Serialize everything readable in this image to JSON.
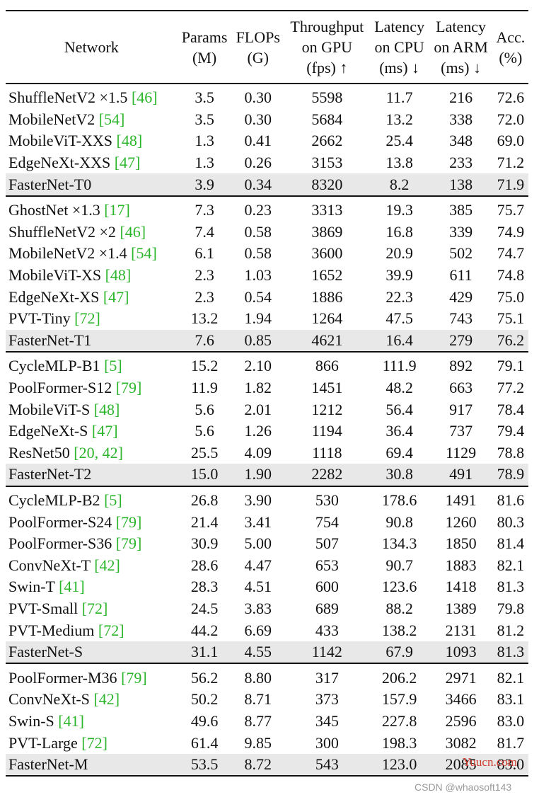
{
  "header": {
    "network": "Network",
    "params": [
      "Params",
      "(M)"
    ],
    "flops": [
      "FLOPs",
      "(G)"
    ],
    "gpu": [
      "Throughput",
      "on GPU",
      "(fps) ↑"
    ],
    "cpu": [
      "Latency",
      "on CPU",
      "(ms) ↓"
    ],
    "arm": [
      "Latency",
      "on ARM",
      "(ms) ↓"
    ],
    "acc": [
      "Acc.",
      "(%)"
    ]
  },
  "groups": [
    [
      {
        "name": "ShuffleNetV2 ×1.5",
        "cite": "[46]",
        "params": "3.5",
        "flops": "0.30",
        "gpu": "5598",
        "cpu": "11.7",
        "arm": "216",
        "acc": "72.6"
      },
      {
        "name": "MobileNetV2",
        "cite": "[54]",
        "params": "3.5",
        "flops": "0.30",
        "gpu": "5684",
        "cpu": "13.2",
        "arm": "338",
        "acc": "72.0"
      },
      {
        "name": "MobileViT-XXS",
        "cite": "[48]",
        "params": "1.3",
        "flops": "0.41",
        "gpu": "2662",
        "cpu": "25.4",
        "arm": "348",
        "acc": "69.0"
      },
      {
        "name": "EdgeNeXt-XXS",
        "cite": "[47]",
        "params": "1.3",
        "flops": "0.26",
        "gpu": "3153",
        "cpu": "13.8",
        "arm": "233",
        "acc": "71.2"
      },
      {
        "name": "FasterNet-T0",
        "cite": "",
        "params": "3.9",
        "flops": "0.34",
        "gpu": "8320",
        "cpu": "8.2",
        "arm": "138",
        "acc": "71.9",
        "highlight": true
      }
    ],
    [
      {
        "name": "GhostNet ×1.3",
        "cite": "[17]",
        "params": "7.3",
        "flops": "0.23",
        "gpu": "3313",
        "cpu": "19.3",
        "arm": "385",
        "acc": "75.7"
      },
      {
        "name": "ShuffleNetV2 ×2",
        "cite": "[46]",
        "params": "7.4",
        "flops": "0.58",
        "gpu": "3869",
        "cpu": "16.8",
        "arm": "339",
        "acc": "74.9"
      },
      {
        "name": "MobileNetV2 ×1.4",
        "cite": "[54]",
        "params": "6.1",
        "flops": "0.58",
        "gpu": "3600",
        "cpu": "20.9",
        "arm": "502",
        "acc": "74.7"
      },
      {
        "name": "MobileViT-XS",
        "cite": "[48]",
        "params": "2.3",
        "flops": "1.03",
        "gpu": "1652",
        "cpu": "39.9",
        "arm": "611",
        "acc": "74.8"
      },
      {
        "name": "EdgeNeXt-XS",
        "cite": "[47]",
        "params": "2.3",
        "flops": "0.54",
        "gpu": "1886",
        "cpu": "22.3",
        "arm": "429",
        "acc": "75.0"
      },
      {
        "name": "PVT-Tiny",
        "cite": "[72]",
        "params": "13.2",
        "flops": "1.94",
        "gpu": "1264",
        "cpu": "47.5",
        "arm": "743",
        "acc": "75.1"
      },
      {
        "name": "FasterNet-T1",
        "cite": "",
        "params": "7.6",
        "flops": "0.85",
        "gpu": "4621",
        "cpu": "16.4",
        "arm": "279",
        "acc": "76.2",
        "highlight": true
      }
    ],
    [
      {
        "name": "CycleMLP-B1",
        "cite": "[5]",
        "params": "15.2",
        "flops": "2.10",
        "gpu": "866",
        "cpu": "111.9",
        "arm": "892",
        "acc": "79.1"
      },
      {
        "name": "PoolFormer-S12",
        "cite": "[79]",
        "params": "11.9",
        "flops": "1.82",
        "gpu": "1451",
        "cpu": "48.2",
        "arm": "663",
        "acc": "77.2"
      },
      {
        "name": "MobileViT-S",
        "cite": "[48]",
        "params": "5.6",
        "flops": "2.01",
        "gpu": "1212",
        "cpu": "56.4",
        "arm": "917",
        "acc": "78.4"
      },
      {
        "name": "EdgeNeXt-S",
        "cite": "[47]",
        "params": "5.6",
        "flops": "1.26",
        "gpu": "1194",
        "cpu": "36.4",
        "arm": "737",
        "acc": "79.4"
      },
      {
        "name": "ResNet50",
        "cite": "[20, 42]",
        "params": "25.5",
        "flops": "4.09",
        "gpu": "1118",
        "cpu": "69.4",
        "arm": "1129",
        "acc": "78.8"
      },
      {
        "name": "FasterNet-T2",
        "cite": "",
        "params": "15.0",
        "flops": "1.90",
        "gpu": "2282",
        "cpu": "30.8",
        "arm": "491",
        "acc": "78.9",
        "highlight": true
      }
    ],
    [
      {
        "name": "CycleMLP-B2",
        "cite": "[5]",
        "params": "26.8",
        "flops": "3.90",
        "gpu": "530",
        "cpu": "178.6",
        "arm": "1491",
        "acc": "81.6"
      },
      {
        "name": "PoolFormer-S24",
        "cite": "[79]",
        "params": "21.4",
        "flops": "3.41",
        "gpu": "754",
        "cpu": "90.8",
        "arm": "1260",
        "acc": "80.3"
      },
      {
        "name": "PoolFormer-S36",
        "cite": "[79]",
        "params": "30.9",
        "flops": "5.00",
        "gpu": "507",
        "cpu": "134.3",
        "arm": "1850",
        "acc": "81.4"
      },
      {
        "name": "ConvNeXt-T",
        "cite": "[42]",
        "params": "28.6",
        "flops": "4.47",
        "gpu": "653",
        "cpu": "90.7",
        "arm": "1883",
        "acc": "82.1"
      },
      {
        "name": "Swin-T",
        "cite": "[41]",
        "params": "28.3",
        "flops": "4.51",
        "gpu": "600",
        "cpu": "123.6",
        "arm": "1418",
        "acc": "81.3"
      },
      {
        "name": "PVT-Small",
        "cite": "[72]",
        "params": "24.5",
        "flops": "3.83",
        "gpu": "689",
        "cpu": "88.2",
        "arm": "1389",
        "acc": "79.8"
      },
      {
        "name": "PVT-Medium",
        "cite": "[72]",
        "params": "44.2",
        "flops": "6.69",
        "gpu": "433",
        "cpu": "138.2",
        "arm": "2131",
        "acc": "81.2"
      },
      {
        "name": "FasterNet-S",
        "cite": "",
        "params": "31.1",
        "flops": "4.55",
        "gpu": "1142",
        "cpu": "67.9",
        "arm": "1093",
        "acc": "81.3",
        "highlight": true
      }
    ],
    [
      {
        "name": "PoolFormer-M36",
        "cite": "[79]",
        "params": "56.2",
        "flops": "8.80",
        "gpu": "317",
        "cpu": "206.2",
        "arm": "2971",
        "acc": "82.1"
      },
      {
        "name": "ConvNeXt-S",
        "cite": "[42]",
        "params": "50.2",
        "flops": "8.71",
        "gpu": "373",
        "cpu": "157.9",
        "arm": "3466",
        "acc": "83.1"
      },
      {
        "name": "Swin-S",
        "cite": "[41]",
        "params": "49.6",
        "flops": "8.77",
        "gpu": "345",
        "cpu": "227.8",
        "arm": "2596",
        "acc": "83.0"
      },
      {
        "name": "PVT-Large",
        "cite": "[72]",
        "params": "61.4",
        "flops": "9.85",
        "gpu": "300",
        "cpu": "198.3",
        "arm": "3082",
        "acc": "81.7"
      },
      {
        "name": "FasterNet-M",
        "cite": "",
        "params": "53.5",
        "flops": "8.72",
        "gpu": "543",
        "cpu": "123.0",
        "arm": "2085",
        "acc": "83.0",
        "highlight": true
      }
    ]
  ],
  "watermarks": {
    "site": "Yuucn.com",
    "csdn": "CSDN @whaosoft143"
  }
}
